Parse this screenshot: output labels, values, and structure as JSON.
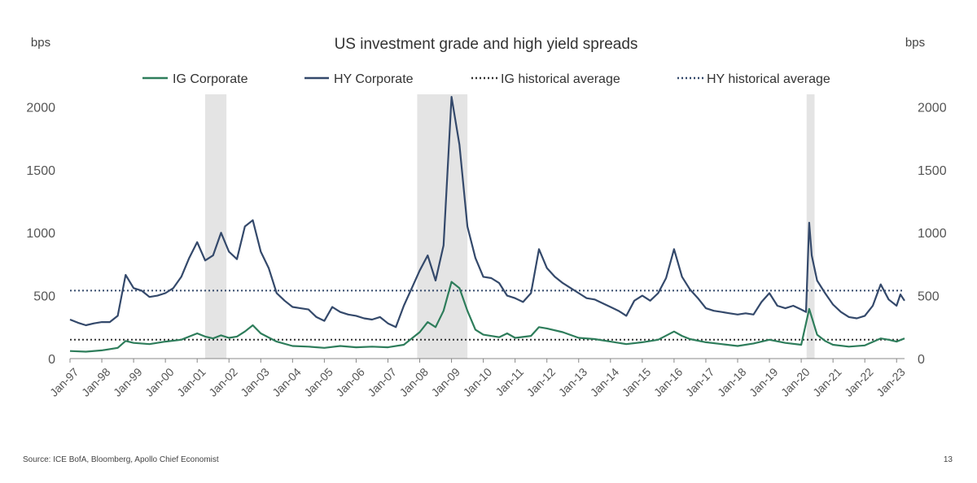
{
  "colors": {
    "ig": "#2e7d5b",
    "hy": "#34496b",
    "recession": "#e4e4e4",
    "axis": "#888888"
  },
  "source_text": "Source: ICE BofA, Bloomberg, Apollo Chief Economist",
  "page_number": "13",
  "chart_data": {
    "type": "line",
    "title": "US investment grade and high yield spreads",
    "ylabel_left": "bps",
    "ylabel_right": "bps",
    "ylim": [
      0,
      2100
    ],
    "yticks": [
      0,
      500,
      1000,
      1500,
      2000
    ],
    "xlim": [
      1997.0,
      2023.25
    ],
    "xtick_labels": [
      "Jan-97",
      "Jan-98",
      "Jan-99",
      "Jan-00",
      "Jan-01",
      "Jan-02",
      "Jan-03",
      "Jan-04",
      "Jan-05",
      "Jan-06",
      "Jan-07",
      "Jan-08",
      "Jan-09",
      "Jan-10",
      "Jan-11",
      "Jan-12",
      "Jan-13",
      "Jan-14",
      "Jan-15",
      "Jan-16",
      "Jan-17",
      "Jan-18",
      "Jan-19",
      "Jan-20",
      "Jan-21",
      "Jan-22",
      "Jan-23"
    ],
    "legend_position": "top",
    "recessions": [
      [
        2001.25,
        2001.92
      ],
      [
        2007.92,
        2009.5
      ],
      [
        2020.17,
        2020.42
      ]
    ],
    "series": [
      {
        "name": "IG Corporate",
        "style": "solid",
        "points": [
          [
            1997.0,
            60
          ],
          [
            1997.5,
            55
          ],
          [
            1998.0,
            65
          ],
          [
            1998.5,
            85
          ],
          [
            1998.75,
            140
          ],
          [
            1999.0,
            125
          ],
          [
            1999.5,
            115
          ],
          [
            2000.0,
            135
          ],
          [
            2000.5,
            150
          ],
          [
            2000.75,
            175
          ],
          [
            2001.0,
            200
          ],
          [
            2001.25,
            175
          ],
          [
            2001.5,
            160
          ],
          [
            2001.75,
            185
          ],
          [
            2002.0,
            165
          ],
          [
            2002.25,
            175
          ],
          [
            2002.5,
            215
          ],
          [
            2002.75,
            265
          ],
          [
            2003.0,
            200
          ],
          [
            2003.5,
            135
          ],
          [
            2004.0,
            100
          ],
          [
            2004.5,
            95
          ],
          [
            2005.0,
            85
          ],
          [
            2005.5,
            100
          ],
          [
            2006.0,
            90
          ],
          [
            2006.5,
            95
          ],
          [
            2007.0,
            90
          ],
          [
            2007.5,
            110
          ],
          [
            2007.75,
            160
          ],
          [
            2008.0,
            210
          ],
          [
            2008.25,
            290
          ],
          [
            2008.5,
            250
          ],
          [
            2008.75,
            380
          ],
          [
            2009.0,
            610
          ],
          [
            2009.25,
            560
          ],
          [
            2009.5,
            380
          ],
          [
            2009.75,
            230
          ],
          [
            2010.0,
            190
          ],
          [
            2010.5,
            170
          ],
          [
            2010.75,
            200
          ],
          [
            2011.0,
            165
          ],
          [
            2011.5,
            180
          ],
          [
            2011.75,
            250
          ],
          [
            2012.0,
            240
          ],
          [
            2012.5,
            210
          ],
          [
            2013.0,
            165
          ],
          [
            2013.5,
            155
          ],
          [
            2014.0,
            135
          ],
          [
            2014.5,
            115
          ],
          [
            2015.0,
            130
          ],
          [
            2015.5,
            150
          ],
          [
            2016.0,
            215
          ],
          [
            2016.25,
            180
          ],
          [
            2016.5,
            155
          ],
          [
            2017.0,
            130
          ],
          [
            2017.5,
            115
          ],
          [
            2018.0,
            100
          ],
          [
            2018.5,
            120
          ],
          [
            2019.0,
            150
          ],
          [
            2019.5,
            125
          ],
          [
            2020.0,
            110
          ],
          [
            2020.25,
            395
          ],
          [
            2020.5,
            190
          ],
          [
            2020.75,
            140
          ],
          [
            2021.0,
            110
          ],
          [
            2021.5,
            95
          ],
          [
            2022.0,
            105
          ],
          [
            2022.5,
            160
          ],
          [
            2022.75,
            150
          ],
          [
            2023.0,
            135
          ],
          [
            2023.25,
            160
          ]
        ]
      },
      {
        "name": "HY Corporate",
        "style": "solid",
        "points": [
          [
            1997.0,
            310
          ],
          [
            1997.25,
            285
          ],
          [
            1997.5,
            265
          ],
          [
            1997.75,
            280
          ],
          [
            1998.0,
            290
          ],
          [
            1998.25,
            290
          ],
          [
            1998.5,
            340
          ],
          [
            1998.75,
            665
          ],
          [
            1999.0,
            560
          ],
          [
            1999.25,
            540
          ],
          [
            1999.5,
            490
          ],
          [
            1999.75,
            500
          ],
          [
            2000.0,
            520
          ],
          [
            2000.25,
            560
          ],
          [
            2000.5,
            650
          ],
          [
            2000.75,
            800
          ],
          [
            2001.0,
            925
          ],
          [
            2001.25,
            780
          ],
          [
            2001.5,
            820
          ],
          [
            2001.75,
            1000
          ],
          [
            2002.0,
            850
          ],
          [
            2002.25,
            790
          ],
          [
            2002.5,
            1050
          ],
          [
            2002.75,
            1100
          ],
          [
            2003.0,
            850
          ],
          [
            2003.25,
            720
          ],
          [
            2003.5,
            520
          ],
          [
            2003.75,
            460
          ],
          [
            2004.0,
            410
          ],
          [
            2004.25,
            400
          ],
          [
            2004.5,
            390
          ],
          [
            2004.75,
            330
          ],
          [
            2005.0,
            300
          ],
          [
            2005.25,
            410
          ],
          [
            2005.5,
            370
          ],
          [
            2005.75,
            350
          ],
          [
            2006.0,
            340
          ],
          [
            2006.25,
            320
          ],
          [
            2006.5,
            310
          ],
          [
            2006.75,
            330
          ],
          [
            2007.0,
            280
          ],
          [
            2007.25,
            250
          ],
          [
            2007.5,
            420
          ],
          [
            2007.75,
            560
          ],
          [
            2008.0,
            700
          ],
          [
            2008.25,
            820
          ],
          [
            2008.5,
            620
          ],
          [
            2008.75,
            900
          ],
          [
            2009.0,
            2080
          ],
          [
            2009.25,
            1700
          ],
          [
            2009.5,
            1050
          ],
          [
            2009.75,
            800
          ],
          [
            2010.0,
            650
          ],
          [
            2010.25,
            640
          ],
          [
            2010.5,
            600
          ],
          [
            2010.75,
            500
          ],
          [
            2011.0,
            480
          ],
          [
            2011.25,
            450
          ],
          [
            2011.5,
            520
          ],
          [
            2011.75,
            870
          ],
          [
            2012.0,
            720
          ],
          [
            2012.25,
            650
          ],
          [
            2012.5,
            600
          ],
          [
            2012.75,
            560
          ],
          [
            2013.0,
            520
          ],
          [
            2013.25,
            480
          ],
          [
            2013.5,
            470
          ],
          [
            2013.75,
            440
          ],
          [
            2014.0,
            410
          ],
          [
            2014.25,
            380
          ],
          [
            2014.5,
            340
          ],
          [
            2014.75,
            460
          ],
          [
            2015.0,
            500
          ],
          [
            2015.25,
            460
          ],
          [
            2015.5,
            520
          ],
          [
            2015.75,
            640
          ],
          [
            2016.0,
            870
          ],
          [
            2016.25,
            650
          ],
          [
            2016.5,
            550
          ],
          [
            2016.75,
            480
          ],
          [
            2017.0,
            400
          ],
          [
            2017.25,
            380
          ],
          [
            2017.5,
            370
          ],
          [
            2017.75,
            360
          ],
          [
            2018.0,
            350
          ],
          [
            2018.25,
            360
          ],
          [
            2018.5,
            350
          ],
          [
            2018.75,
            450
          ],
          [
            2019.0,
            520
          ],
          [
            2019.25,
            420
          ],
          [
            2019.5,
            400
          ],
          [
            2019.75,
            420
          ],
          [
            2020.0,
            390
          ],
          [
            2020.15,
            370
          ],
          [
            2020.25,
            1080
          ],
          [
            2020.33,
            820
          ],
          [
            2020.5,
            620
          ],
          [
            2020.75,
            520
          ],
          [
            2021.0,
            430
          ],
          [
            2021.25,
            370
          ],
          [
            2021.5,
            330
          ],
          [
            2021.75,
            320
          ],
          [
            2022.0,
            340
          ],
          [
            2022.25,
            420
          ],
          [
            2022.5,
            590
          ],
          [
            2022.75,
            470
          ],
          [
            2023.0,
            420
          ],
          [
            2023.12,
            510
          ],
          [
            2023.25,
            460
          ]
        ]
      },
      {
        "name": "IG historical average",
        "style": "dotted",
        "value": 150
      },
      {
        "name": "HY historical average",
        "style": "dotted",
        "value": 540
      }
    ]
  }
}
